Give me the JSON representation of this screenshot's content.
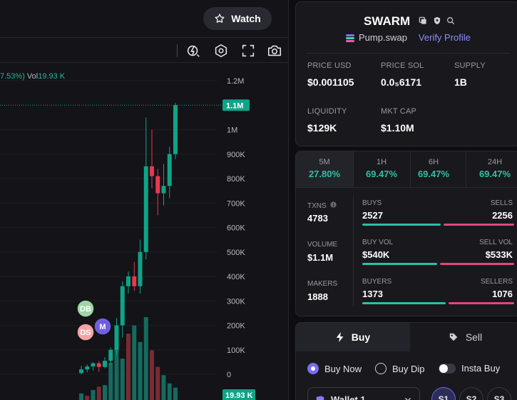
{
  "chart": {
    "watch_label": "Watch",
    "legend": {
      "change_fragment": "7.53%)",
      "vol_label": "Vol",
      "vol_value": "19.93 K"
    },
    "price_scale": [
      "1.2M",
      "1M",
      "900K",
      "800K",
      "700K",
      "600K",
      "500K",
      "400K",
      "300K",
      "200K",
      "100K",
      "0"
    ],
    "last_price_tag": "1.1M",
    "volume_tag": "19.93 K",
    "markers": [
      "DB",
      "DS",
      "M"
    ],
    "colors": {
      "up": "#0ea488",
      "down": "#e8384f",
      "vol_up": "#146b5e",
      "vol_down": "#7a2a35"
    },
    "icons": [
      "chart-idea-icon",
      "hexagon-indicator-icon",
      "fullscreen-icon",
      "camera-icon"
    ]
  },
  "chart_data": {
    "type": "candlestick",
    "unit": "market cap",
    "candles": [
      {
        "o": 5000,
        "h": 35000,
        "l": -1000,
        "c": 20000
      },
      {
        "o": 20000,
        "h": 40000,
        "l": 8000,
        "c": 32000
      },
      {
        "o": 32000,
        "h": 50000,
        "l": 15000,
        "c": 45000
      },
      {
        "o": 45000,
        "h": 55000,
        "l": 10000,
        "c": 30000
      },
      {
        "o": 30000,
        "h": 70000,
        "l": 25000,
        "c": 55000
      },
      {
        "o": 55000,
        "h": 110000,
        "l": 40000,
        "c": 100000
      },
      {
        "o": 100000,
        "h": 230000,
        "l": 80000,
        "c": 200000
      },
      {
        "o": 200000,
        "h": 380000,
        "l": 150000,
        "c": 360000
      },
      {
        "o": 360000,
        "h": 420000,
        "l": 330000,
        "c": 400000
      },
      {
        "o": 400000,
        "h": 460000,
        "l": 340000,
        "c": 360000
      },
      {
        "o": 360000,
        "h": 550000,
        "l": 330000,
        "c": 500000
      },
      {
        "o": 500000,
        "h": 1050000,
        "l": 470000,
        "c": 850000
      },
      {
        "o": 850000,
        "h": 1000000,
        "l": 760000,
        "c": 810000
      },
      {
        "o": 810000,
        "h": 840000,
        "l": 650000,
        "c": 740000
      },
      {
        "o": 740000,
        "h": 860000,
        "l": 690000,
        "c": 770000
      },
      {
        "o": 770000,
        "h": 930000,
        "l": 720000,
        "c": 900000
      },
      {
        "o": 900000,
        "h": 1110000,
        "l": 880000,
        "c": 1100000
      }
    ],
    "volume_levels": [
      0.08,
      0.05,
      0.12,
      0.16,
      0.18,
      0.45,
      0.7,
      0.5,
      0.8,
      0.9,
      0.7,
      1.0,
      0.6,
      0.4,
      0.3,
      0.2,
      0.15
    ],
    "volume_up": [
      true,
      false,
      true,
      false,
      true,
      true,
      true,
      true,
      false,
      true,
      true,
      true,
      false,
      false,
      true,
      true,
      true
    ],
    "ylim": [
      0,
      1200000
    ]
  },
  "token": {
    "name": "SWARM",
    "dex": "Pump.swap",
    "verify_label": "Verify Profile",
    "metrics": [
      {
        "label": "PRICE USD",
        "value": "$0.001105"
      },
      {
        "label": "PRICE SOL",
        "value": "0.0₅6171"
      },
      {
        "label": "SUPPLY",
        "value": "1B"
      },
      {
        "label": "LIQUIDITY",
        "value": "$129K"
      },
      {
        "label": "MKT CAP",
        "value": "$1.10M"
      }
    ]
  },
  "stats": {
    "timeframes": [
      {
        "label": "5M",
        "value": "27.80%"
      },
      {
        "label": "1H",
        "value": "69.47%"
      },
      {
        "label": "6H",
        "value": "69.47%"
      },
      {
        "label": "24H",
        "value": "69.47%"
      }
    ],
    "txns_label": "TXNS",
    "txns_value": "4783",
    "volume_label": "VOLUME",
    "volume_value": "$1.1M",
    "makers_label": "MAKERS",
    "makers_value": "1888",
    "buys_label": "BUYS",
    "buys_value": "2527",
    "sells_label": "SELLS",
    "sells_value": "2256",
    "buy_vol_label": "BUY VOL",
    "buy_vol_value": "$540K",
    "sell_vol_label": "SELL VOL",
    "sell_vol_value": "$533K",
    "buyers_label": "BUYERS",
    "buyers_value": "1373",
    "sellers_label": "SELLERS",
    "sellers_value": "1076",
    "buy_share": {
      "txns": 0.528,
      "volume": 0.503,
      "makers": 0.561
    }
  },
  "trade": {
    "buy_tab": "Buy",
    "sell_tab": "Sell",
    "options": [
      "Buy Now",
      "Buy Dip",
      "Insta Buy"
    ],
    "wallet_label": "Wallet 1",
    "presets": [
      "S1",
      "S2",
      "S3"
    ]
  }
}
